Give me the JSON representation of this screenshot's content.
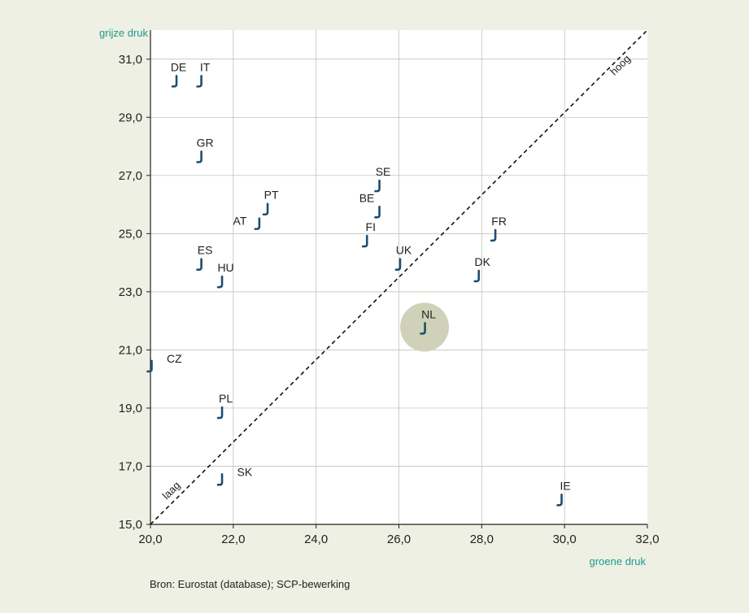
{
  "chart_data": {
    "type": "scatter",
    "ylabel": "grijze druk",
    "xlabel": "groene druk",
    "xlim": [
      20,
      32
    ],
    "ylim": [
      15,
      32
    ],
    "x_ticks": [
      "20,0",
      "22,0",
      "24,0",
      "26,0",
      "28,0",
      "30,0",
      "32,0"
    ],
    "y_ticks": [
      "15,0",
      "17,0",
      "19,0",
      "21,0",
      "23,0",
      "25,0",
      "27,0",
      "29,0",
      "31,0"
    ],
    "reference_line": {
      "from": [
        20,
        15
      ],
      "to": [
        32,
        32
      ],
      "style": "dashed",
      "low_label": "laag",
      "high_label": "hoog"
    },
    "points": [
      {
        "label": "DE",
        "x": 20.6,
        "y": 30.2
      },
      {
        "label": "IT",
        "x": 21.2,
        "y": 30.2
      },
      {
        "label": "GR",
        "x": 21.2,
        "y": 27.6
      },
      {
        "label": "PT",
        "x": 22.8,
        "y": 25.8
      },
      {
        "label": "AT",
        "x": 22.6,
        "y": 25.3
      },
      {
        "label": "ES",
        "x": 21.2,
        "y": 23.9
      },
      {
        "label": "HU",
        "x": 21.7,
        "y": 23.3
      },
      {
        "label": "SE",
        "x": 25.5,
        "y": 26.6
      },
      {
        "label": "BE",
        "x": 25.5,
        "y": 25.7
      },
      {
        "label": "FI",
        "x": 25.2,
        "y": 24.7
      },
      {
        "label": "UK",
        "x": 26.0,
        "y": 23.9
      },
      {
        "label": "FR",
        "x": 28.3,
        "y": 24.9
      },
      {
        "label": "DK",
        "x": 27.9,
        "y": 23.5
      },
      {
        "label": "NL",
        "x": 26.6,
        "y": 21.7,
        "highlighted": true
      },
      {
        "label": "CZ",
        "x": 20.0,
        "y": 20.4
      },
      {
        "label": "PL",
        "x": 21.7,
        "y": 18.8
      },
      {
        "label": "SK",
        "x": 21.7,
        "y": 16.5
      },
      {
        "label": "IE",
        "x": 29.9,
        "y": 15.8
      }
    ],
    "grid": true,
    "colors": {
      "background": "#eef0e4",
      "plot_background": "#ffffff",
      "axis_title": "#1a9b8a",
      "marker": "#1f4e6e",
      "highlight": "#cfd2b8",
      "grid": "#b8bcae"
    }
  },
  "source": "Bron: Eurostat (database); SCP-bewerking"
}
